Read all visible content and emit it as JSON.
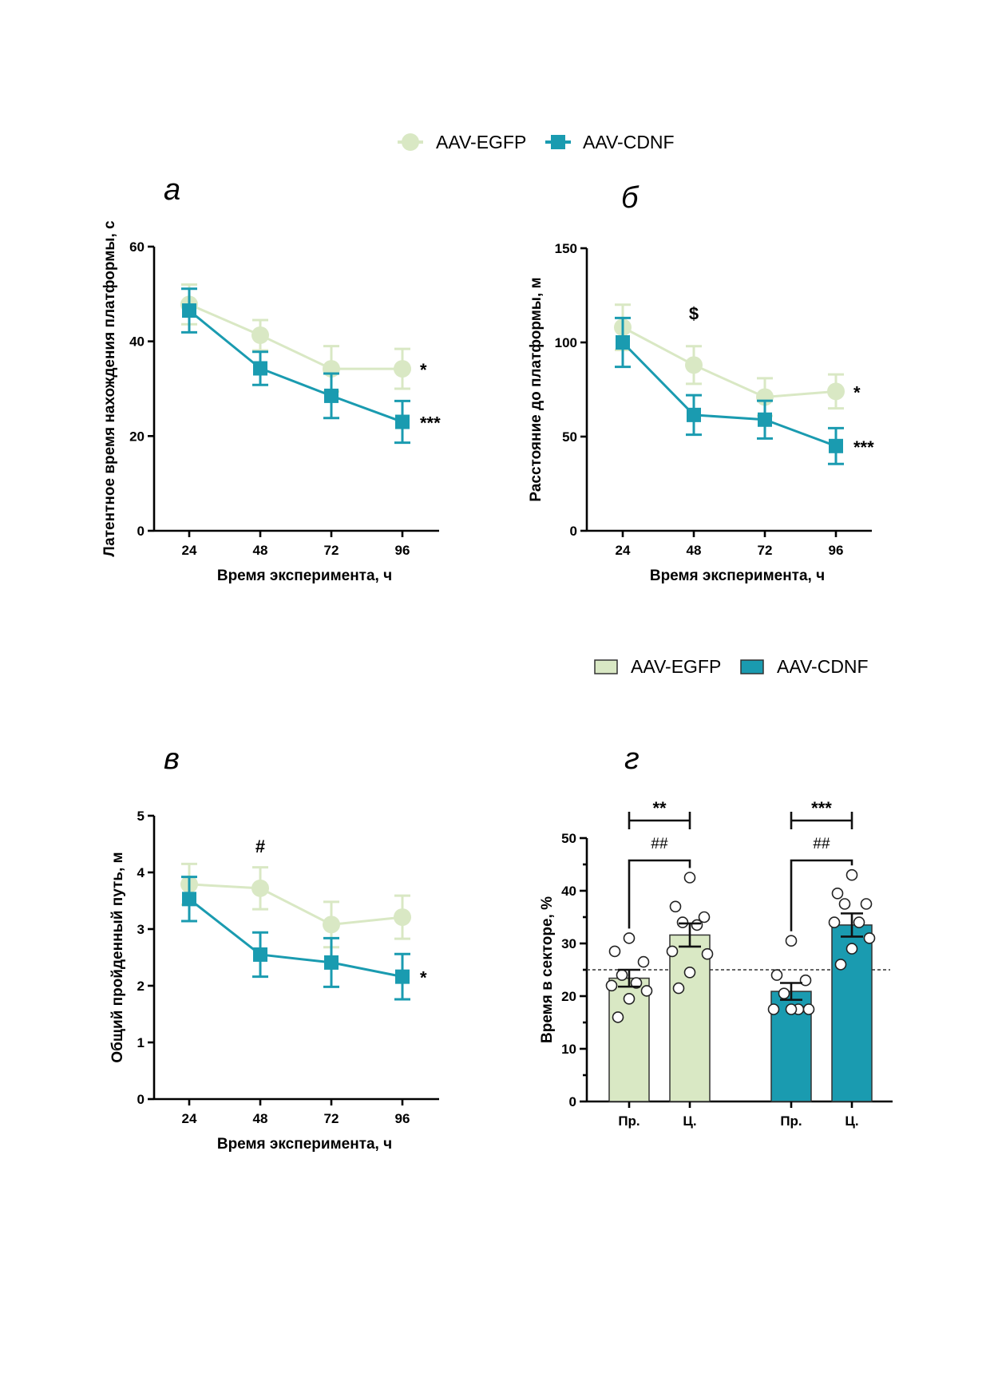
{
  "colors": {
    "egfp": "#d9e8c4",
    "cdnf": "#1a9bb0",
    "bar_stroke": "#333333"
  },
  "legend_top": {
    "items": [
      {
        "label": "AAV-EGFP",
        "marker": "circle"
      },
      {
        "label": "AAV-CDNF",
        "marker": "square"
      }
    ]
  },
  "legend_bar": {
    "items": [
      {
        "label": "AAV-EGFP"
      },
      {
        "label": "AAV-CDNF"
      }
    ]
  },
  "chart_data": [
    {
      "id": "a",
      "panel_label": "а",
      "type": "line",
      "xlabel": "Время эксперимента, ч",
      "ylabel": "Латентное время нахождения платформы, с",
      "x": [
        "24",
        "48",
        "72",
        "96"
      ],
      "ylim": [
        0,
        60
      ],
      "yticks": [
        0,
        20,
        40,
        60
      ],
      "series": [
        {
          "name": "AAV-EGFP",
          "values": [
            47.8,
            41.3,
            34.2,
            34.2
          ],
          "err": [
            4.2,
            3.2,
            4.8,
            4.2
          ]
        },
        {
          "name": "AAV-CDNF",
          "values": [
            46.5,
            34.3,
            28.5,
            23.0
          ],
          "err": [
            4.6,
            3.5,
            4.7,
            4.4
          ]
        }
      ],
      "annotations": [
        {
          "text": "*",
          "series": "AAV-EGFP",
          "x": "96"
        },
        {
          "text": "***",
          "series": "AAV-CDNF",
          "x": "96"
        }
      ]
    },
    {
      "id": "b",
      "panel_label": "б",
      "type": "line",
      "xlabel": "Время эксперимента, ч",
      "ylabel": "Расстояние до платформы, м",
      "x": [
        "24",
        "48",
        "72",
        "96"
      ],
      "ylim": [
        0,
        150
      ],
      "yticks": [
        0,
        50,
        100,
        150
      ],
      "series": [
        {
          "name": "AAV-EGFP",
          "values": [
            108,
            88,
            71,
            74
          ],
          "err": [
            12,
            10,
            10,
            9
          ]
        },
        {
          "name": "AAV-CDNF",
          "values": [
            100,
            61.5,
            59,
            45
          ],
          "err": [
            13,
            10.5,
            10,
            9.5
          ]
        }
      ],
      "annotations": [
        {
          "text": "$",
          "x": "48",
          "above": 112
        },
        {
          "text": "*",
          "series": "AAV-EGFP",
          "x": "96"
        },
        {
          "text": "***",
          "series": "AAV-CDNF",
          "x": "96"
        }
      ]
    },
    {
      "id": "c",
      "panel_label": "в",
      "type": "line",
      "xlabel": "Время эксперимента, ч",
      "ylabel": "Общий пройденный путь, м",
      "x": [
        "24",
        "48",
        "72",
        "96"
      ],
      "ylim": [
        0,
        5
      ],
      "yticks": [
        0,
        1,
        2,
        3,
        4,
        5
      ],
      "series": [
        {
          "name": "AAV-EGFP",
          "values": [
            3.79,
            3.72,
            3.08,
            3.21
          ],
          "err": [
            0.36,
            0.37,
            0.4,
            0.38
          ]
        },
        {
          "name": "AAV-CDNF",
          "values": [
            3.53,
            2.55,
            2.41,
            2.16
          ],
          "err": [
            0.39,
            0.39,
            0.43,
            0.4
          ]
        }
      ],
      "annotations": [
        {
          "text": "#",
          "x": "48",
          "above": 4.35
        },
        {
          "text": "*",
          "series": "AAV-CDNF",
          "x": "96"
        }
      ]
    },
    {
      "id": "d",
      "panel_label": "г",
      "type": "bar",
      "ylabel": "Время в секторе, %",
      "categories": [
        "Пр.",
        "Ц.",
        "Пр.",
        "Ц."
      ],
      "groups": [
        "AAV-EGFP",
        "AAV-EGFP",
        "AAV-CDNF",
        "AAV-CDNF"
      ],
      "ylim": [
        0,
        50
      ],
      "yticks": [
        0,
        10,
        20,
        30,
        40,
        50
      ],
      "chance_level": 25,
      "values": [
        23.4,
        31.6,
        20.9,
        33.5
      ],
      "err": [
        1.6,
        2.2,
        1.6,
        2.2
      ],
      "points": [
        [
          31,
          28.5,
          26.5,
          24,
          22.5,
          22,
          21,
          19.5,
          16
        ],
        [
          42.5,
          37,
          35,
          34,
          33.5,
          28.5,
          28,
          24.5,
          21.5
        ],
        [
          30.5,
          24,
          23,
          20.5,
          17.5,
          17.5,
          17.5,
          17.5
        ],
        [
          43,
          39.5,
          37.5,
          37.5,
          34,
          34,
          31,
          29,
          26
        ]
      ],
      "comparisons": [
        {
          "pair": [
            0,
            1
          ],
          "text": "**",
          "level": "outer"
        },
        {
          "pair": [
            0,
            1
          ],
          "text": "##",
          "level": "inner"
        },
        {
          "pair": [
            2,
            3
          ],
          "text": "***",
          "level": "outer"
        },
        {
          "pair": [
            2,
            3
          ],
          "text": "##",
          "level": "inner"
        }
      ]
    }
  ]
}
